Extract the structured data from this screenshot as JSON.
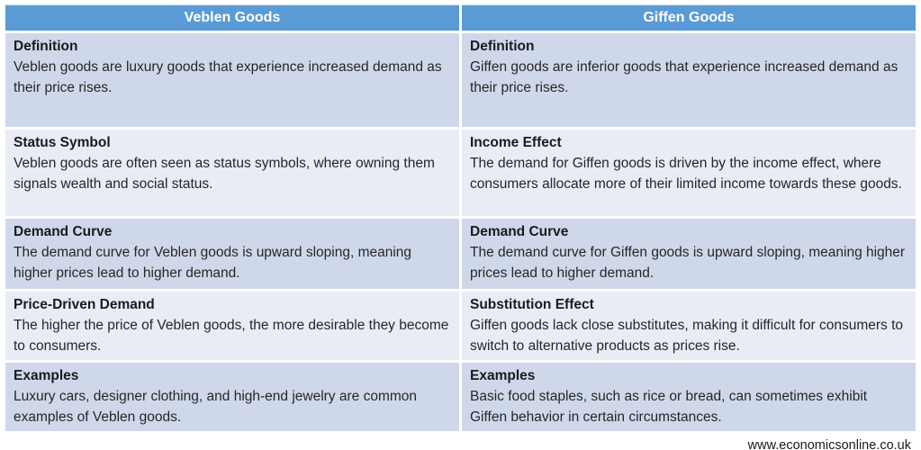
{
  "colors": {
    "header_bg": "#5B9BD5",
    "header_text": "#FFFFFF",
    "band_dark": "#CFD8EB",
    "band_light": "#E9ECF5",
    "body_text": "#262626"
  },
  "table": {
    "headers": {
      "left": "Veblen Goods",
      "right": "Giffen Goods"
    },
    "rows": [
      {
        "left": {
          "title": "Definition",
          "body": "Veblen goods are luxury goods that experience increased demand as their price rises."
        },
        "right": {
          "title": "Definition",
          "body": "Giffen goods are inferior goods that experience increased demand as their price rises."
        }
      },
      {
        "left": {
          "title": "Status Symbol",
          "body": "Veblen goods are often seen as status symbols, where owning them signals wealth and social status."
        },
        "right": {
          "title": "Income Effect",
          "body": "The demand for Giffen goods is driven by the income effect, where consumers allocate more of their limited income towards these goods."
        }
      },
      {
        "left": {
          "title": "Demand Curve",
          "body": "The demand curve for Veblen goods is upward sloping, meaning higher prices lead to higher demand."
        },
        "right": {
          "title": "Demand Curve",
          "body": "The demand curve for Giffen goods is upward sloping, meaning higher prices lead to higher demand."
        }
      },
      {
        "left": {
          "title": "Price-Driven Demand",
          "body": "The higher the price of Veblen goods, the more desirable they become to consumers."
        },
        "right": {
          "title": "Substitution Effect",
          "body": "Giffen goods lack close substitutes, making it difficult for consumers to switch to alternative products as prices rise."
        }
      },
      {
        "left": {
          "title": "Examples",
          "body": "Luxury cars, designer clothing, and high-end jewelry are common examples of Veblen goods."
        },
        "right": {
          "title": "Examples",
          "body": "Basic food staples, such as rice or bread, can sometimes exhibit Giffen behavior in certain circumstances."
        }
      }
    ]
  },
  "footer": {
    "website": "www.economicsonline.co.uk"
  }
}
